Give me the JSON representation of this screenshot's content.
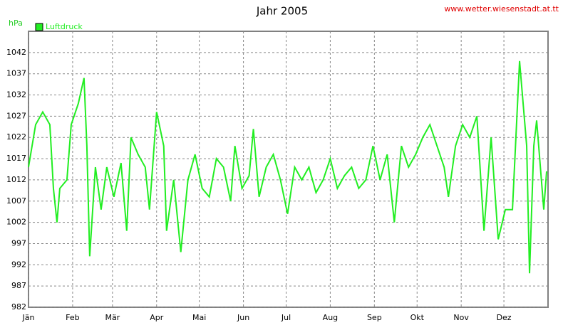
{
  "chart_data": {
    "type": "line",
    "title": "Jahr 2005",
    "source": "www.wetter.wiesenstadt.at.tt",
    "y_label": "hPa",
    "legend": "top-left",
    "grid": true,
    "xlim": [
      1,
      366
    ],
    "ylim": [
      982,
      1047
    ],
    "xticks": [
      {
        "value": 1,
        "label": "Jän"
      },
      {
        "value": 32,
        "label": "Feb"
      },
      {
        "value": 60,
        "label": "Mär"
      },
      {
        "value": 91,
        "label": "Apr"
      },
      {
        "value": 121,
        "label": "Mai"
      },
      {
        "value": 152,
        "label": "Jun"
      },
      {
        "value": 182,
        "label": "Jul"
      },
      {
        "value": 213,
        "label": "Aug"
      },
      {
        "value": 244,
        "label": "Sep"
      },
      {
        "value": 274,
        "label": "Okt"
      },
      {
        "value": 305,
        "label": "Nov"
      },
      {
        "value": 335,
        "label": "Dez"
      }
    ],
    "yticks": [
      982,
      987,
      992,
      997,
      1002,
      1007,
      1012,
      1017,
      1022,
      1027,
      1032,
      1037,
      1042
    ],
    "x": [
      1,
      6,
      11,
      16,
      18.5,
      21,
      23,
      28,
      31,
      36,
      40,
      42,
      44,
      48,
      52,
      56,
      61,
      66,
      70,
      73,
      78,
      83,
      86,
      91,
      96,
      98,
      103,
      108,
      113,
      118,
      123,
      128,
      133,
      138,
      143,
      146,
      151,
      156,
      159,
      163,
      168,
      173,
      178,
      183,
      188,
      193,
      198,
      203,
      208,
      213,
      218,
      223,
      228,
      233,
      238,
      243,
      248,
      253,
      258,
      263,
      268,
      273,
      278,
      283,
      288,
      293,
      296,
      301,
      306,
      311,
      316,
      321,
      326,
      331,
      336,
      341,
      346,
      351,
      353,
      356,
      358,
      363,
      365
    ],
    "series": [
      {
        "name": "Luftdruck",
        "color": "#22ee22",
        "values": [
          1015,
          1025,
          1028,
          1025,
          1010,
          1002,
          1010,
          1012,
          1025,
          1030,
          1036,
          1020,
          994,
          1015,
          1005,
          1015,
          1008,
          1016,
          1000,
          1022,
          1018,
          1015,
          1005,
          1028,
          1020,
          1000,
          1012,
          995,
          1012,
          1018,
          1010,
          1008,
          1017,
          1015,
          1007,
          1020,
          1010,
          1013,
          1024,
          1008,
          1015,
          1018,
          1012,
          1004,
          1015,
          1012,
          1015,
          1009,
          1012,
          1017,
          1010,
          1013,
          1015,
          1010,
          1012,
          1020,
          1012,
          1018,
          1002,
          1020,
          1015,
          1018,
          1022,
          1025,
          1020,
          1015,
          1008,
          1020,
          1025,
          1022,
          1027,
          1000,
          1022,
          998,
          1005,
          1005,
          1040,
          1020,
          990,
          1020,
          1026,
          1005,
          1014
        ]
      }
    ]
  }
}
